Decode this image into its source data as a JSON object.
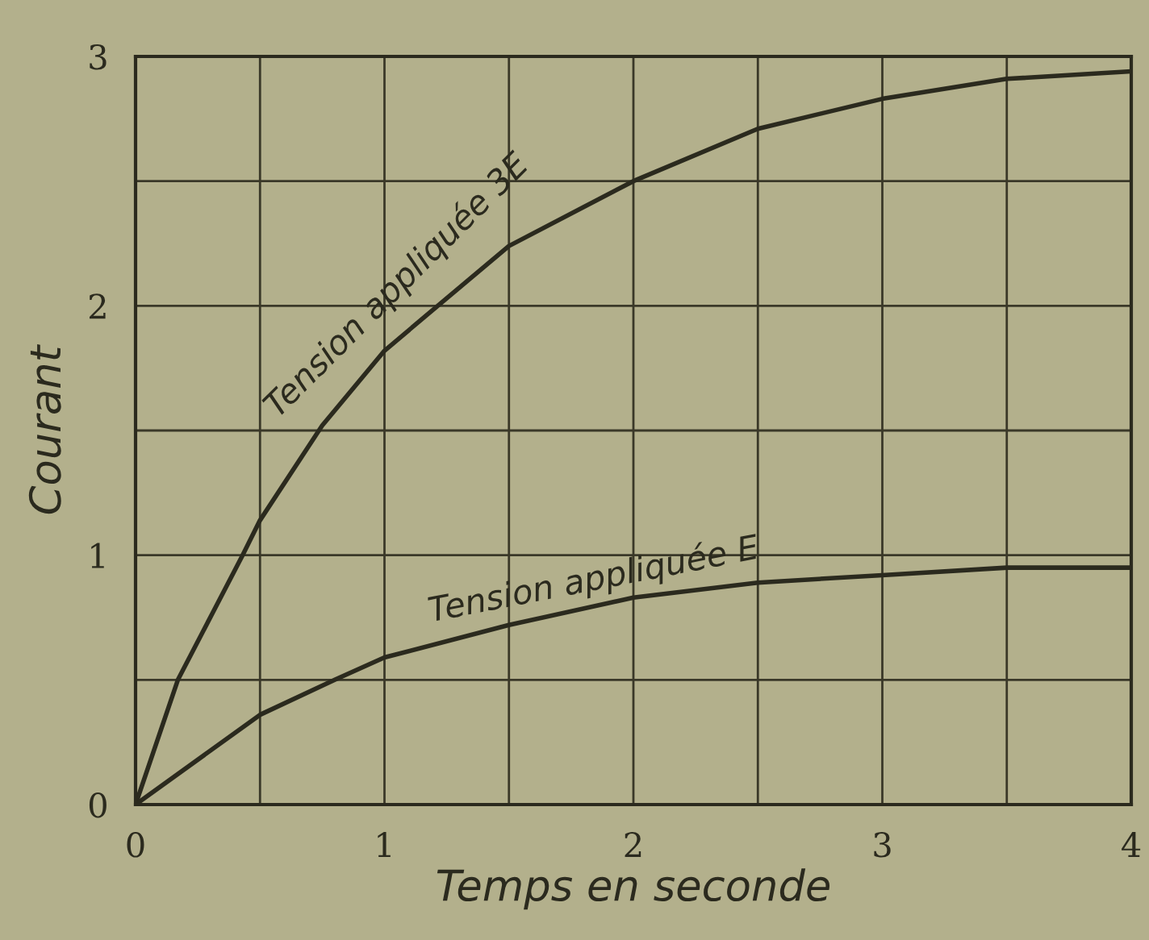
{
  "chart_data": {
    "type": "line",
    "xlabel": "Temps en seconde",
    "ylabel": "Courant",
    "xlim": [
      0,
      4
    ],
    "ylim": [
      0,
      3
    ],
    "xticks": [
      0,
      {
        "value": 0.5,
        "label": null
      },
      1,
      {
        "value": 1.5,
        "label": null
      },
      2,
      {
        "value": 2.5,
        "label": null
      },
      3,
      {
        "value": 3.5,
        "label": null
      },
      4
    ],
    "yticks": [
      0,
      {
        "value": 0.5,
        "label": null
      },
      1,
      {
        "value": 1.5,
        "label": null
      },
      2,
      {
        "value": 2.5,
        "label": null
      },
      3
    ],
    "grid": true,
    "legend": false,
    "marker": "none",
    "line_style": "solid",
    "series": [
      {
        "name": "Tension appliquée 3E",
        "color": "#2b2a1e",
        "x": [
          0,
          0.17,
          0.43,
          0.5,
          0.75,
          1,
          1.5,
          2,
          2.5,
          3,
          3.5,
          4
        ],
        "values": [
          0,
          0.5,
          1.0,
          1.14,
          1.52,
          1.82,
          2.24,
          2.5,
          2.71,
          2.83,
          2.91,
          2.94
        ]
      },
      {
        "name": "Tension appliquée E",
        "color": "#2b2a1e",
        "x": [
          0,
          0.5,
          0.8,
          1,
          1.5,
          2,
          2.5,
          3,
          3.5,
          4
        ],
        "values": [
          0,
          0.36,
          0.5,
          0.59,
          0.72,
          0.83,
          0.89,
          0.92,
          0.95,
          0.95
        ]
      }
    ]
  }
}
